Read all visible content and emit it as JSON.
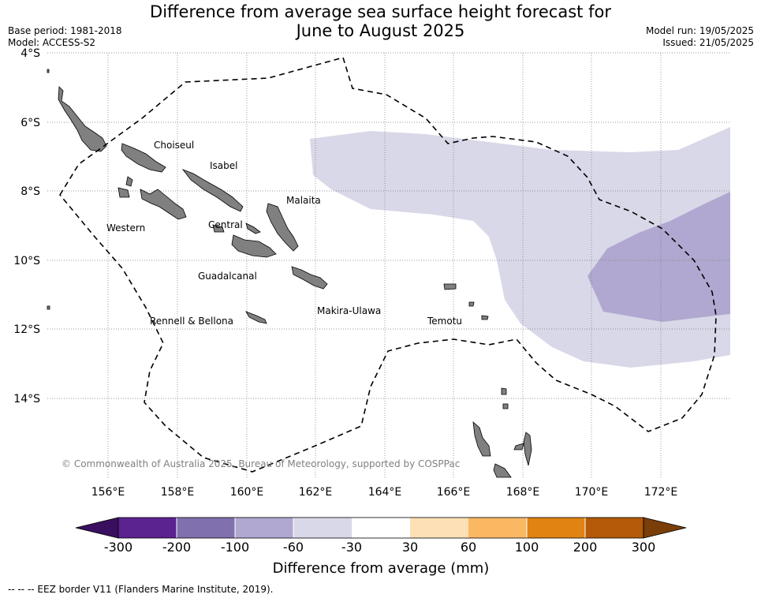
{
  "title_line1": "Difference from average sea surface height forecast for",
  "title_line2": "June to August 2025",
  "meta_left": {
    "base_period": "Base period: 1981-2018",
    "model": "Model: ACCESS-S2"
  },
  "meta_right": {
    "model_run": "Model run: 19/05/2025",
    "issued": "Issued: 21/05/2025"
  },
  "map": {
    "lat_labels": [
      "4°S",
      "6°S",
      "8°S",
      "10°S",
      "12°S",
      "14°S"
    ],
    "lon_labels": [
      "156°E",
      "158°E",
      "160°E",
      "162°E",
      "164°E",
      "166°E",
      "168°E",
      "170°E",
      "172°E"
    ],
    "regions": [
      "Choiseul",
      "Isabel",
      "Malaita",
      "Western",
      "Central",
      "Guadalcanal",
      "Rennell & Bellona",
      "Makira-Ulawa",
      "Temotu"
    ],
    "credit": "© Commonwealth of Australia 2025, Bureau of Meteorology, supported by COSPPac",
    "anomaly_classes_shown": [
      "-60 to -30",
      "-100 to -60"
    ],
    "colors": {
      "land": "#808080",
      "class_-60_-30": "#d8d8e8",
      "class_-100_-60": "#b0a8d0"
    }
  },
  "colorbar": {
    "ticks": [
      "-300",
      "-200",
      "-100",
      "-60",
      "-30",
      "30",
      "60",
      "100",
      "200",
      "300"
    ],
    "colors": [
      "#5a2390",
      "#8070ae",
      "#b0a8d0",
      "#d8d8e8",
      "#ffffff",
      "#fee0b6",
      "#fbb863",
      "#e08312",
      "#b45a08"
    ],
    "extend_low_color": "#3a0f60",
    "extend_high_color": "#7a3e08",
    "label": "Difference from average (mm)"
  },
  "footer": "--  --  -- EEZ border V11 (Flanders Marine Institute, 2019)."
}
